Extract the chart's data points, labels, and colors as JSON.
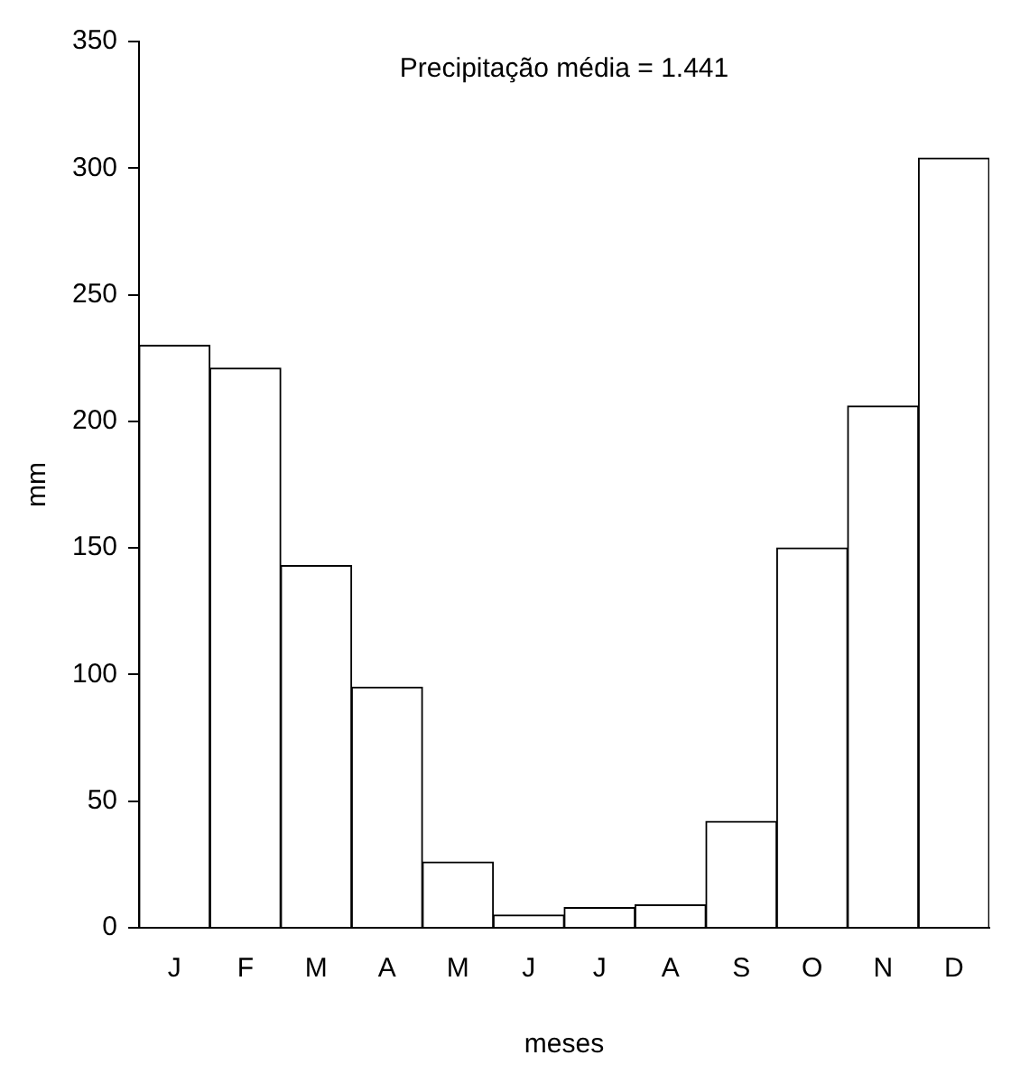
{
  "chart_data": {
    "type": "bar",
    "xlabel": "meses",
    "ylabel": "mm",
    "annotations": [
      "Precipitação média = 1.441"
    ],
    "categories": [
      "J",
      "F",
      "M",
      "A",
      "M",
      "J",
      "J",
      "A",
      "S",
      "O",
      "N",
      "D"
    ],
    "values": [
      230,
      221,
      143,
      95,
      26,
      5,
      8,
      9,
      42,
      150,
      206,
      304
    ],
    "color": "#ffffff",
    "ylim": [
      0,
      350
    ],
    "yticks": [
      0,
      50,
      100,
      150,
      200,
      250,
      300,
      350
    ],
    "grid": false,
    "legend": false
  }
}
